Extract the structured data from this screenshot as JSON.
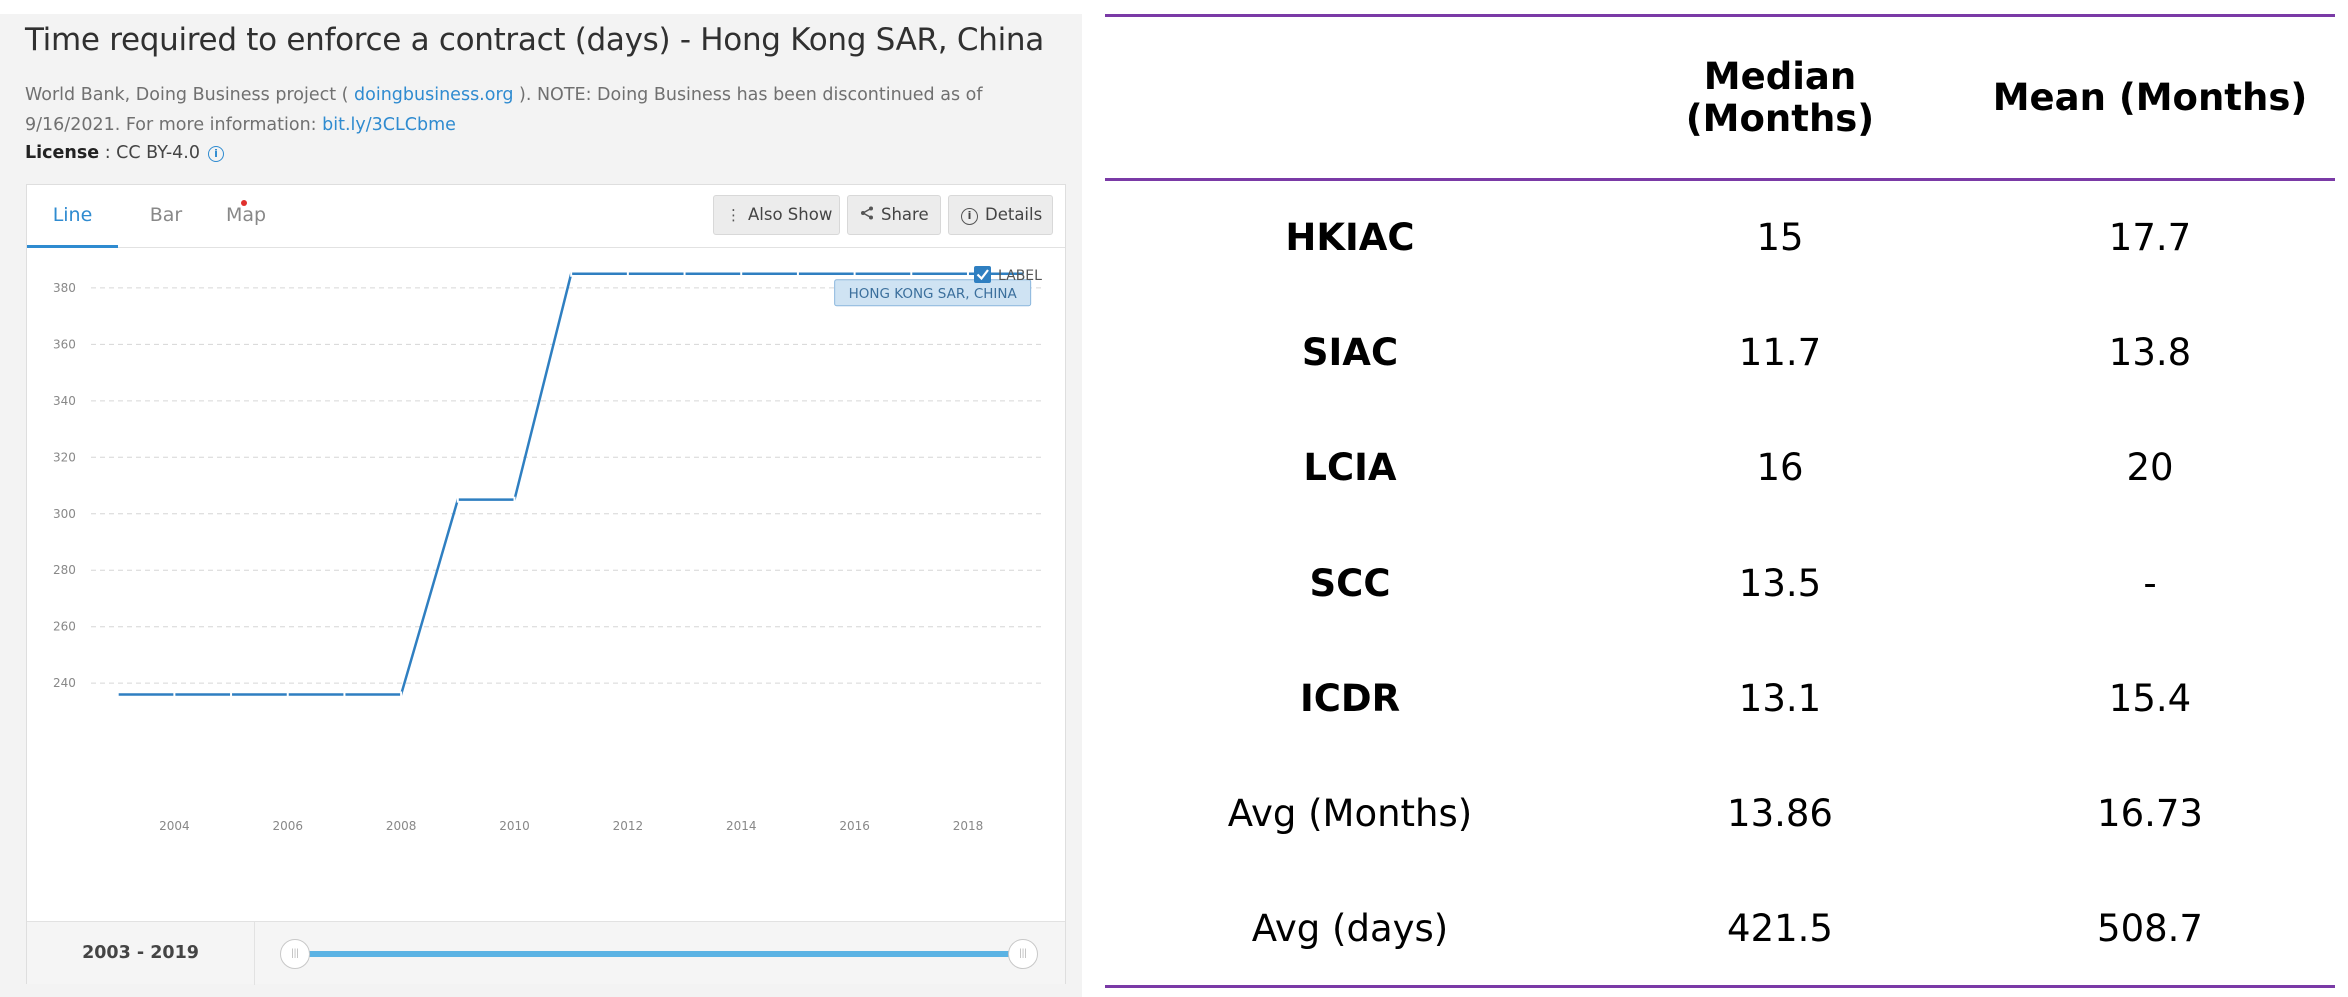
{
  "left": {
    "title": "Time required to enforce a contract (days) - Hong Kong SAR, China",
    "source_prefix": "World Bank, Doing Business project ( ",
    "source_link": "doingbusiness.org",
    "source_middle": " ). NOTE: Doing Business has been discontinued as of 9/16/2021. For more information: ",
    "source_link2": "bit.ly/3CLCbme",
    "license_label": "License",
    "license_value": " : CC BY-4.0",
    "tabs": [
      {
        "label": "Line",
        "active": true
      },
      {
        "label": "Bar",
        "active": false
      },
      {
        "label": "Map",
        "active": false
      }
    ],
    "buttons": {
      "also_show": "Also Show",
      "share": "Share",
      "details": "Details"
    },
    "label_checkbox": {
      "label": "LABEL",
      "checked": true
    },
    "range_label": "2003 - 2019",
    "slider": {
      "min": 2003,
      "max": 2019,
      "start": 2003,
      "end": 2019
    }
  },
  "chart_data": {
    "type": "line",
    "title": "Time required to enforce a contract (days) - Hong Kong SAR, China",
    "x": [
      2003,
      2004,
      2005,
      2006,
      2007,
      2008,
      2009,
      2010,
      2011,
      2012,
      2013,
      2014,
      2015,
      2016,
      2017,
      2018,
      2019
    ],
    "series": [
      {
        "name": "HONG KONG SAR, CHINA",
        "values": [
          236,
          236,
          236,
          236,
          236,
          236,
          305,
          305,
          385,
          385,
          385,
          385,
          385,
          385,
          385,
          385,
          385
        ],
        "color": "#2f7fc1"
      }
    ],
    "x_ticks": [
      2004,
      2006,
      2008,
      2010,
      2012,
      2014,
      2016,
      2018
    ],
    "y_ticks": [
      240,
      260,
      280,
      300,
      320,
      340,
      360,
      380
    ],
    "xlim": [
      2002.0,
      2019.5
    ],
    "ylim": [
      222,
      392
    ],
    "grid": true,
    "legend": "top-right"
  },
  "table": {
    "headers": [
      "",
      "Median\n(Months)",
      "Mean (Months)"
    ],
    "rows": [
      {
        "label": "HKIAC",
        "bold": true,
        "median": "15",
        "mean": "17.7"
      },
      {
        "label": "SIAC",
        "bold": true,
        "median": "11.7",
        "mean": "13.8"
      },
      {
        "label": "LCIA",
        "bold": true,
        "median": "16",
        "mean": "20"
      },
      {
        "label": "SCC",
        "bold": true,
        "median": "13.5",
        "mean": "-"
      },
      {
        "label": "ICDR",
        "bold": true,
        "median": "13.1",
        "mean": "15.4"
      },
      {
        "label": "Avg (Months)",
        "bold": false,
        "median": "13.86",
        "mean": "16.73"
      },
      {
        "label": "Avg (days)",
        "bold": false,
        "median": "421.5",
        "mean": "508.7"
      }
    ],
    "accent_color": "#7a3aa6"
  }
}
